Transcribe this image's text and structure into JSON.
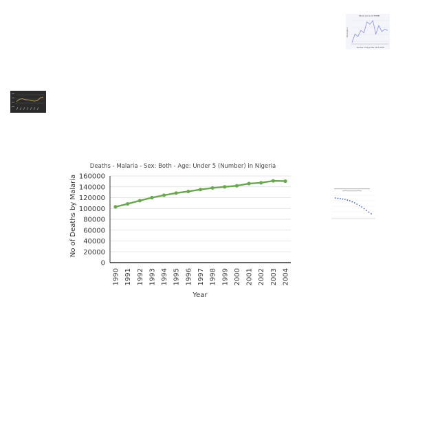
{
  "chart_data": [
    {
      "type": "line",
      "title": "Deaths - Malaria - Sex: Both - Age: Under 5 (Number) in Nigeria",
      "xlabel": "Year",
      "ylabel": "No of Deaths by Malaria",
      "x": [
        "1990",
        "1991",
        "1992",
        "1993",
        "1994",
        "1995",
        "1996",
        "1997",
        "1998",
        "1999",
        "2000",
        "2001",
        "2002",
        "2003",
        "2004"
      ],
      "series": [
        {
          "values": [
            103000,
            108500,
            114500,
            120000,
            124500,
            128500,
            131500,
            135000,
            138000,
            140000,
            142000,
            146000,
            147500,
            151000,
            150500
          ]
        }
      ],
      "ylim": [
        0,
        160000
      ],
      "yticks": [
        "0",
        "20000",
        "40000",
        "60000",
        "80000",
        "100000",
        "120000",
        "140000",
        "160000"
      ],
      "grid": true,
      "line_color": "#6aa84f"
    },
    {
      "type": "line",
      "title": "Stock price of XYMB",
      "xlabel": "Number of days after 2017-09-05",
      "ylabel": "Stock price",
      "series": [
        {
          "values": [
            5,
            40,
            30,
            55,
            45,
            90,
            80,
            95,
            40,
            75,
            50,
            60,
            55
          ]
        }
      ],
      "line_color": "#8a8fe0"
    },
    {
      "type": "line",
      "series": [
        {
          "values": [
            30,
            55,
            60,
            50,
            48,
            40,
            35,
            40,
            70,
            78
          ]
        }
      ],
      "line_color": "#c8a14a",
      "background": "#2b2b2b"
    },
    {
      "type": "scatter",
      "series": [
        {
          "values": [
            96,
            95,
            94,
            93,
            92,
            90,
            88,
            85,
            82,
            78,
            74,
            70,
            65,
            60,
            55,
            50
          ]
        }
      ],
      "point_color": "#3b5bb5"
    }
  ]
}
